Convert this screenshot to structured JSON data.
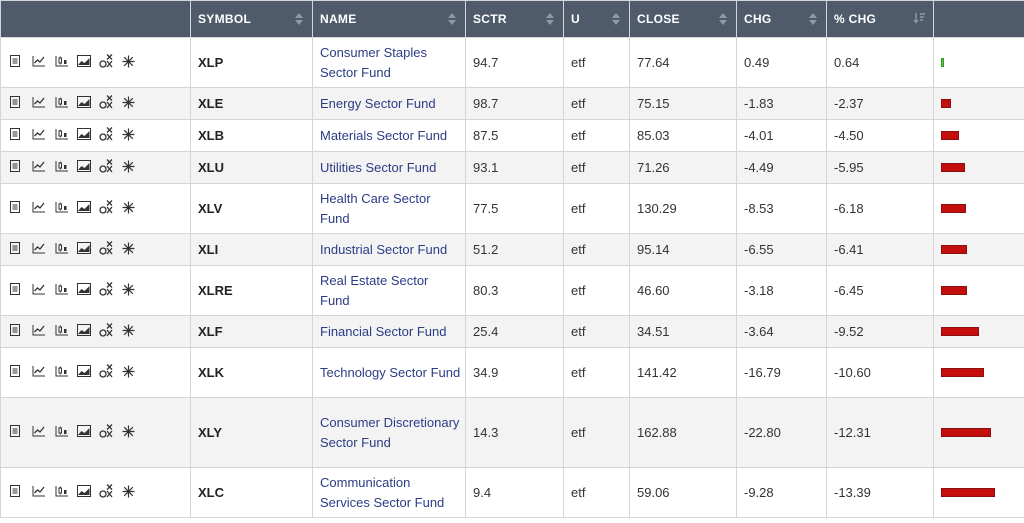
{
  "header": {
    "symbol": "SYMBOL",
    "name": "NAME",
    "sctr": "SCTR",
    "u": "U",
    "close": "CLOSE",
    "chg": "CHG",
    "pchg": "% CHG"
  },
  "icons": [
    "summary-icon",
    "chart-icon",
    "candle-chart-icon",
    "area-chart-icon",
    "pnf-chart-icon",
    "seasonality-icon"
  ],
  "colors": {
    "header_bg": "#4f5b6b",
    "link": "#2b3d84",
    "bar_negative": "#c40d0d",
    "bar_positive": "#58c13b"
  },
  "rows": [
    {
      "symbol": "XLP",
      "name": "Consumer Staples Sector Fund",
      "sctr": "94.7",
      "u": "etf",
      "close": "77.64",
      "chg": "0.49",
      "pchg": "0.64",
      "pchg_value": 0.64
    },
    {
      "symbol": "XLE",
      "name": "Energy Sector Fund",
      "sctr": "98.7",
      "u": "etf",
      "close": "75.15",
      "chg": "-1.83",
      "pchg": "-2.37",
      "pchg_value": -2.37
    },
    {
      "symbol": "XLB",
      "name": "Materials Sector Fund",
      "sctr": "87.5",
      "u": "etf",
      "close": "85.03",
      "chg": "-4.01",
      "pchg": "-4.50",
      "pchg_value": -4.5
    },
    {
      "symbol": "XLU",
      "name": "Utilities Sector Fund",
      "sctr": "93.1",
      "u": "etf",
      "close": "71.26",
      "chg": "-4.49",
      "pchg": "-5.95",
      "pchg_value": -5.95
    },
    {
      "symbol": "XLV",
      "name": "Health Care Sector Fund",
      "sctr": "77.5",
      "u": "etf",
      "close": "130.29",
      "chg": "-8.53",
      "pchg": "-6.18",
      "pchg_value": -6.18
    },
    {
      "symbol": "XLI",
      "name": "Industrial Sector Fund",
      "sctr": "51.2",
      "u": "etf",
      "close": "95.14",
      "chg": "-6.55",
      "pchg": "-6.41",
      "pchg_value": -6.41
    },
    {
      "symbol": "XLRE",
      "name": "Real Estate Sector Fund",
      "sctr": "80.3",
      "u": "etf",
      "close": "46.60",
      "chg": "-3.18",
      "pchg": "-6.45",
      "pchg_value": -6.45
    },
    {
      "symbol": "XLF",
      "name": "Financial Sector Fund",
      "sctr": "25.4",
      "u": "etf",
      "close": "34.51",
      "chg": "-3.64",
      "pchg": "-9.52",
      "pchg_value": -9.52
    },
    {
      "symbol": "XLK",
      "name": "Technology Sector Fund",
      "sctr": "34.9",
      "u": "etf",
      "close": "141.42",
      "chg": "-16.79",
      "pchg": "-10.60",
      "pchg_value": -10.6
    },
    {
      "symbol": "XLY",
      "name": "Consumer Discretionary Sector Fund",
      "sctr": "14.3",
      "u": "etf",
      "close": "162.88",
      "chg": "-22.80",
      "pchg": "-12.31",
      "pchg_value": -12.31
    },
    {
      "symbol": "XLC",
      "name": "Communication Services Sector Fund",
      "sctr": "9.4",
      "u": "etf",
      "close": "59.06",
      "chg": "-9.28",
      "pchg": "-13.39",
      "pchg_value": -13.39
    }
  ]
}
